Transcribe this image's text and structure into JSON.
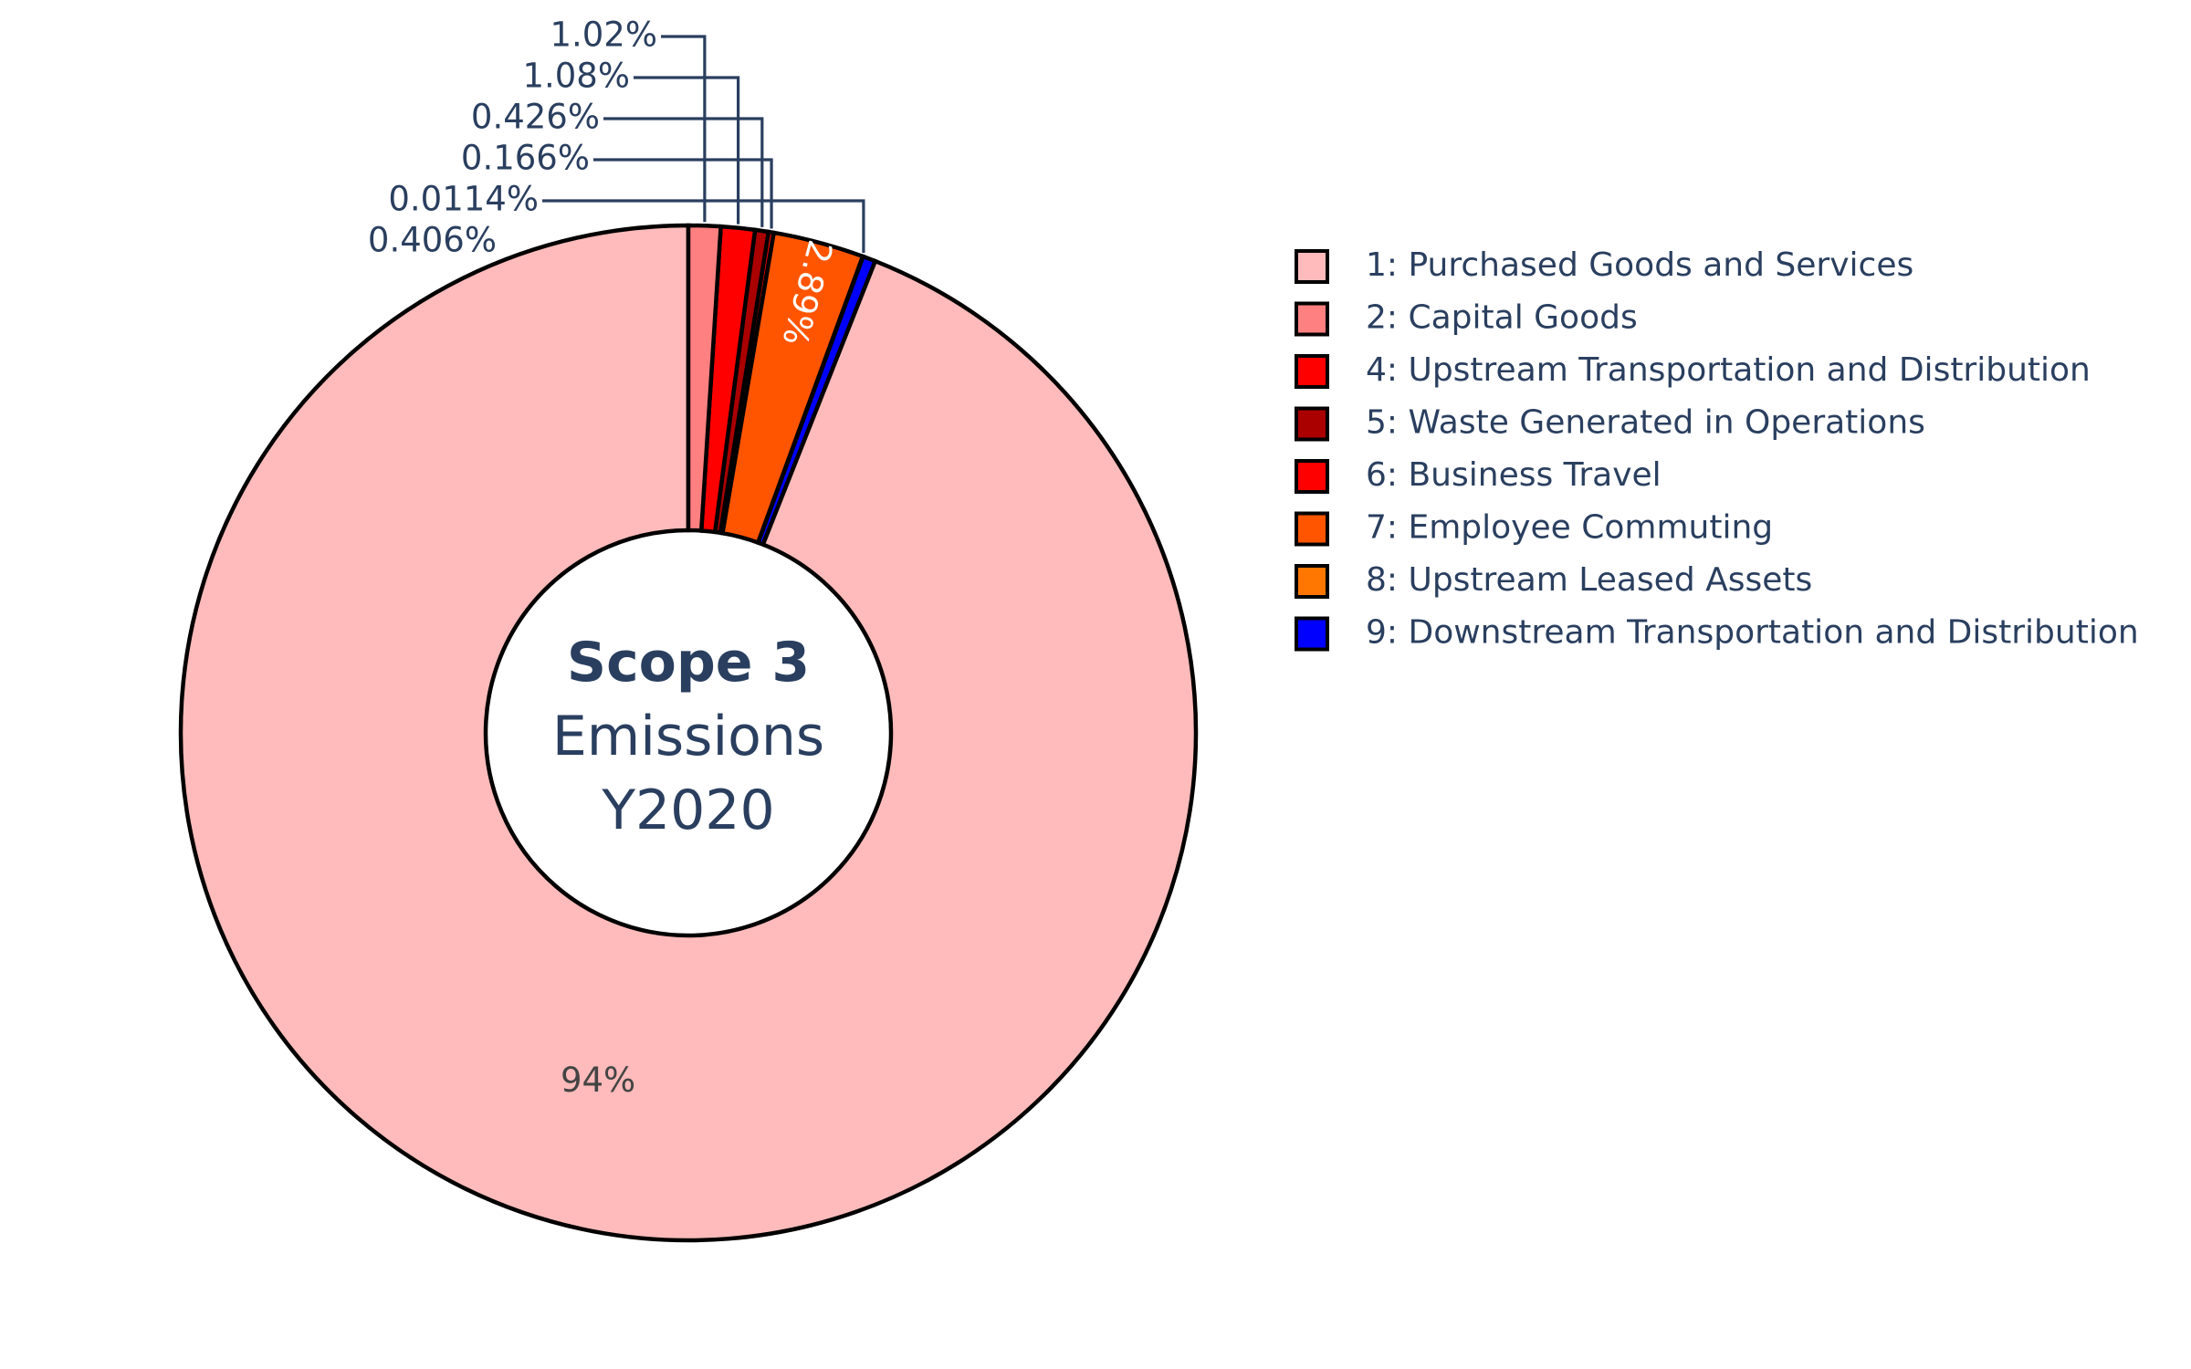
{
  "chart_data": {
    "type": "pie",
    "hole": true,
    "sort": false,
    "direction": "clockwise",
    "center_text": {
      "line1": "Scope 3",
      "line2": "Emissions",
      "line3": "Y2020"
    },
    "slices": [
      {
        "name": "1: Purchased Goods and Services",
        "value": 94.0,
        "label": "94%",
        "color": "#FFBBBB"
      },
      {
        "name": "9: Downstream Transportation and Distribution",
        "value": 0.406,
        "label": "0.406%",
        "color": "#0000FF"
      },
      {
        "name": "8: Upstream Leased Assets",
        "value": 0.0114,
        "label": "0.0114%",
        "color": "#FF7700"
      },
      {
        "name": "7: Employee Commuting",
        "value": 2.89,
        "label": "2.89%",
        "color": "#FF5500"
      },
      {
        "name": "6: Business Travel",
        "value": 0.166,
        "label": "0.166%",
        "color": "#FF0000"
      },
      {
        "name": "5: Waste Generated in Operations",
        "value": 0.426,
        "label": "0.426%",
        "color": "#AA0000"
      },
      {
        "name": "4: Upstream Transportation and Distribution",
        "value": 1.08,
        "label": "1.08%",
        "color": "#FF0000"
      },
      {
        "name": "2: Capital Goods",
        "value": 1.02,
        "label": "1.02%",
        "color": "#FF8080"
      }
    ],
    "legend": {
      "placement": "right",
      "items": [
        {
          "name": "1: Purchased Goods and Services",
          "color": "#FFBBBB"
        },
        {
          "name": "2: Capital Goods",
          "color": "#FF8080"
        },
        {
          "name": "4: Upstream Transportation and Distribution",
          "color": "#FF0000"
        },
        {
          "name": "5: Waste Generated in Operations",
          "color": "#AA0000"
        },
        {
          "name": "6: Business Travel",
          "color": "#FF0000"
        },
        {
          "name": "7: Employee Commuting",
          "color": "#FF5500"
        },
        {
          "name": "8: Upstream Leased Assets",
          "color": "#FF7700"
        },
        {
          "name": "9: Downstream Transportation and Distribution",
          "color": "#0000FF"
        }
      ]
    },
    "colors": {
      "text": "#2a3f5f",
      "outline": "#000000",
      "inside_label_dark": "#444444",
      "inside_label_light": "#ffffff"
    }
  }
}
